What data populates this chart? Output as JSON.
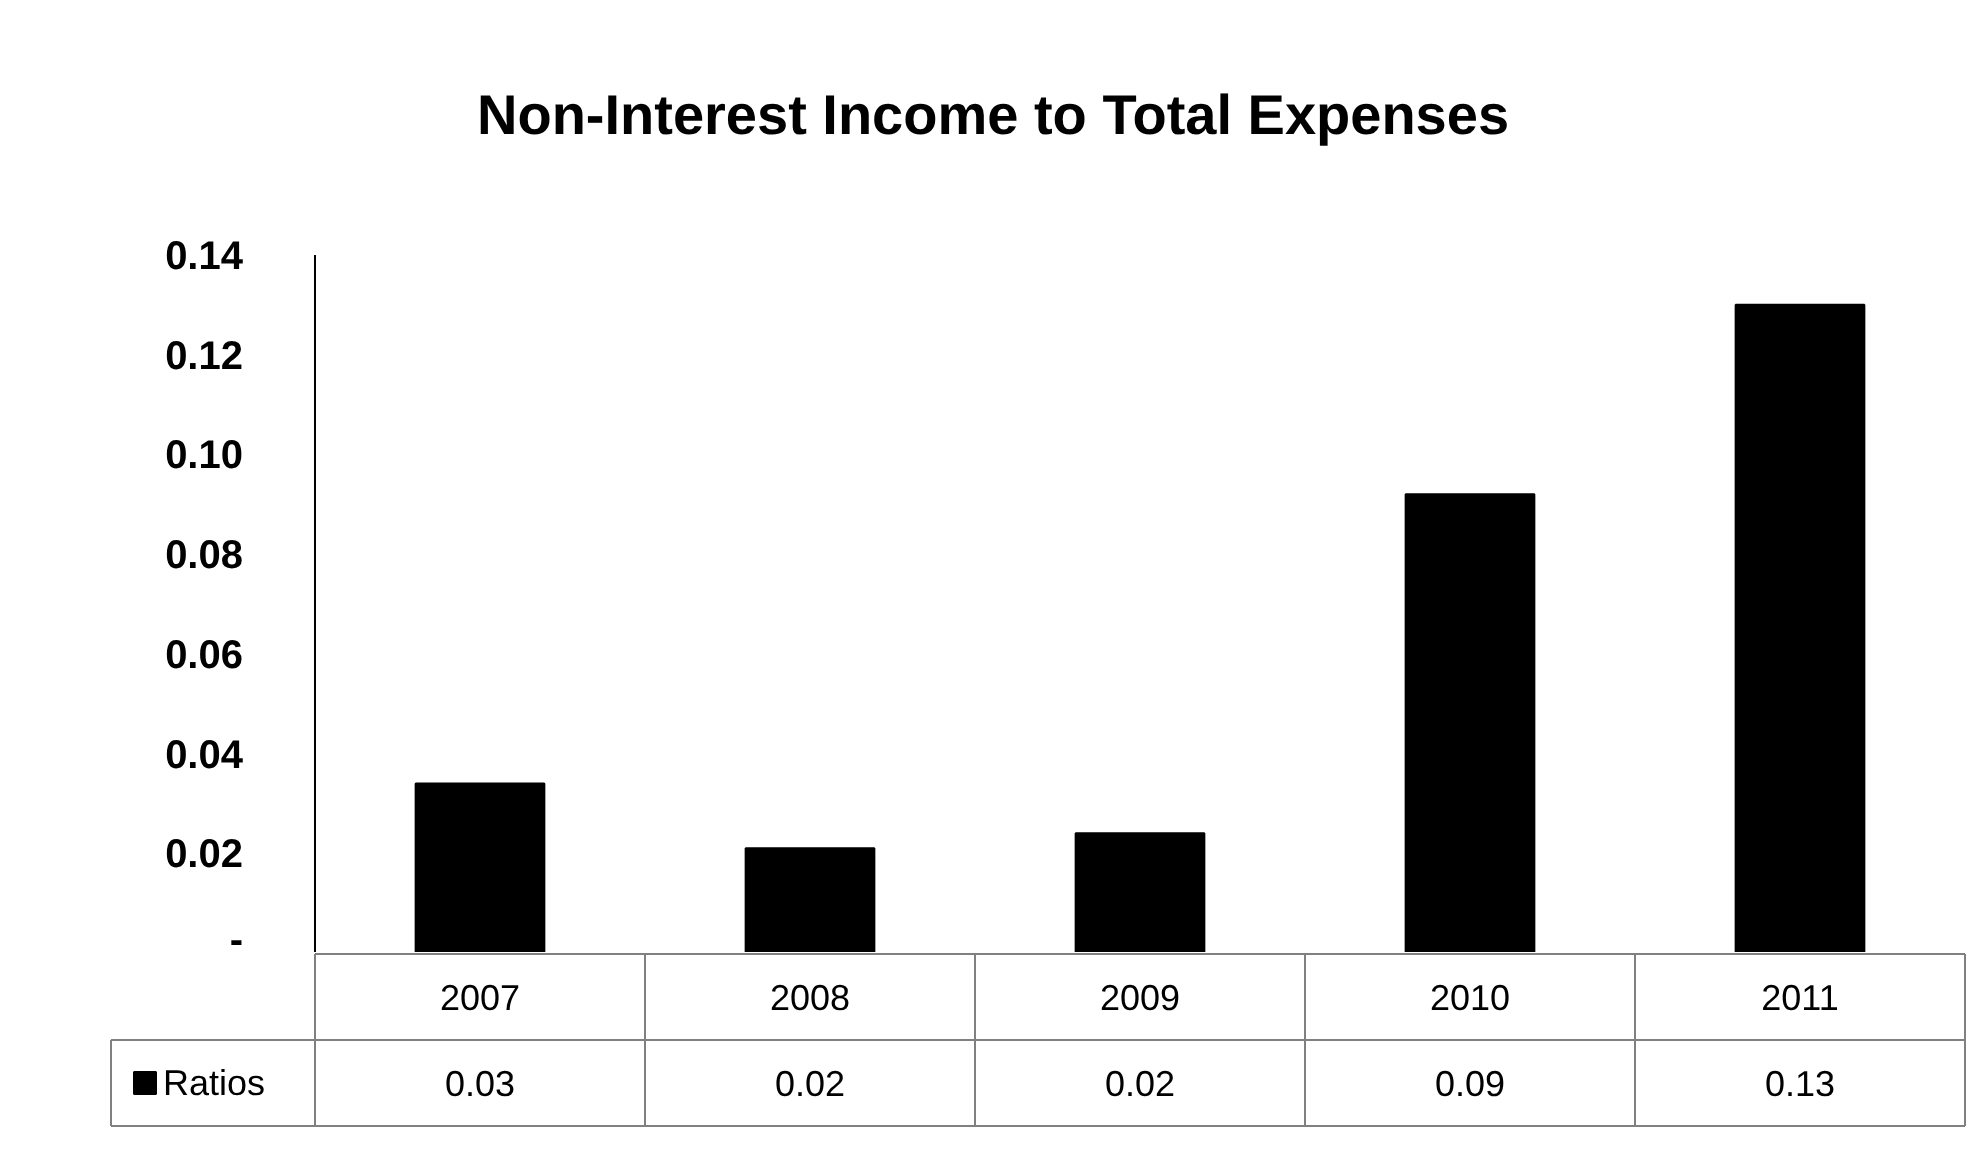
{
  "chart_data": {
    "type": "bar",
    "title": "Non-Interest Income to Total Expenses",
    "categories": [
      "2007",
      "2008",
      "2009",
      "2010",
      "2011"
    ],
    "series": [
      {
        "name": "Ratios",
        "color": "#000000",
        "values": [
          0.034,
          0.021,
          0.024,
          0.092,
          0.13
        ],
        "value_labels": [
          "0.03",
          "0.02",
          "0.02",
          "0.09",
          "0.13"
        ]
      }
    ],
    "ylim": [
      0,
      0.14
    ],
    "yticks": [
      {
        "value": 0,
        "label": "-"
      },
      0.02,
      0.04,
      0.06,
      0.08,
      {
        "value": 0.1,
        "label": "0.10"
      },
      0.12,
      0.14
    ],
    "grid": false,
    "legend": "bottom"
  }
}
